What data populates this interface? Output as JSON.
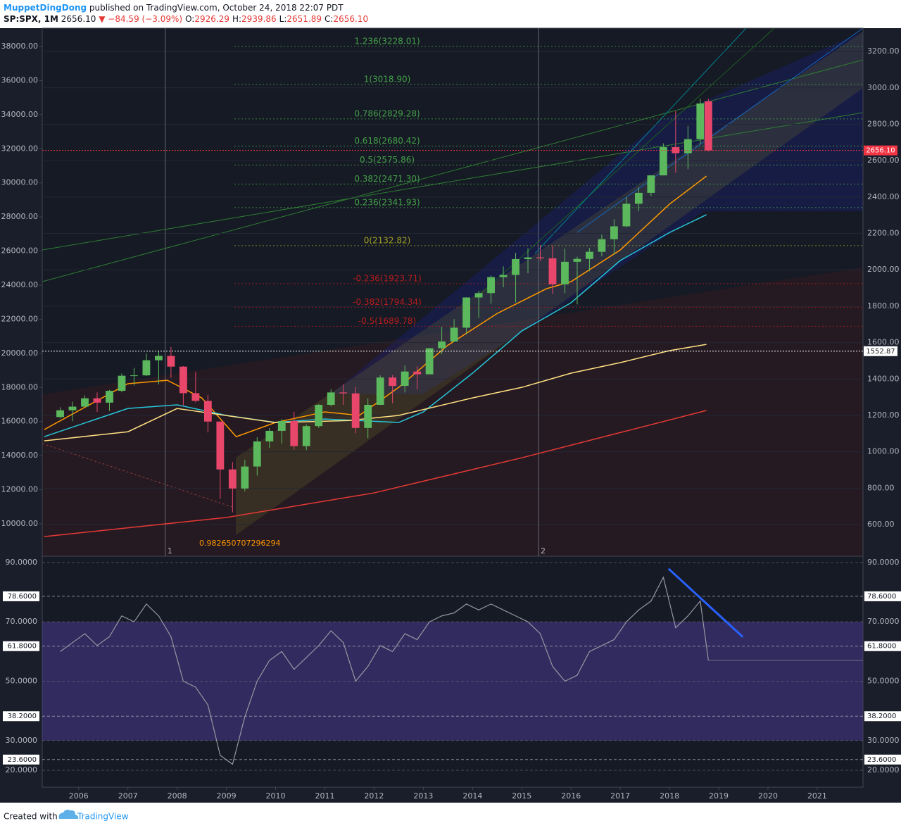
{
  "header": {
    "author": "MuppetDingDong",
    "published": "published on TradingView.com, October 24, 2018 22:07 PDT",
    "symbol": "SP:SPX, 1M",
    "last": "2656.10",
    "change": "−84.59 (−3.09%)",
    "ohlc": [
      {
        "key": "O:",
        "value": "2926.29"
      },
      {
        "key": "H:",
        "value": "2939.86"
      },
      {
        "key": "L:",
        "value": "2651.89"
      },
      {
        "key": "C:",
        "value": "2656.10"
      }
    ]
  },
  "chart_data": [
    {
      "type": "candlestick",
      "x": [
        2005.625,
        2005.875,
        2006.125,
        2006.375,
        2006.625,
        2006.875,
        2007.125,
        2007.375,
        2007.625,
        2007.875,
        2008.125,
        2008.375,
        2008.625,
        2008.875,
        2009.125,
        2009.375,
        2009.625,
        2009.875,
        2010.125,
        2010.375,
        2010.625,
        2010.875,
        2011.125,
        2011.375,
        2011.625,
        2011.875,
        2012.125,
        2012.375,
        2012.625,
        2012.875,
        2013.125,
        2013.375,
        2013.625,
        2013.875,
        2014.125,
        2014.375,
        2014.625,
        2014.875,
        2015.125,
        2015.375,
        2015.625,
        2015.875,
        2016.125,
        2016.375,
        2016.625,
        2016.875,
        2017.125,
        2017.375,
        2017.625,
        2017.875,
        2018.125,
        2018.375,
        2018.625,
        2018.79
      ],
      "open": [
        1191,
        1228,
        1248,
        1294,
        1270,
        1335,
        1418,
        1420,
        1503,
        1527,
        1468,
        1322,
        1280,
        1166,
        903,
        798,
        919,
        1057,
        1115,
        1169,
        1031,
        1141,
        1258,
        1326,
        1321,
        1131,
        1258,
        1408,
        1362,
        1441,
        1426,
        1569,
        1606,
        1682,
        1848,
        1872,
        1960,
        1972,
        2059,
        2068,
        2063,
        1920,
        2044,
        2060,
        2099,
        2168,
        2239,
        2363,
        2423,
        2519,
        2674,
        2641,
        2718,
        2926.29
      ],
      "high": [
        1245,
        1275,
        1310,
        1326,
        1340,
        1431,
        1461,
        1540,
        1556,
        1576,
        1471,
        1440,
        1313,
        1167,
        944,
        956,
        1080,
        1130,
        1180,
        1220,
        1150,
        1262,
        1344,
        1371,
        1356,
        1293,
        1420,
        1422,
        1475,
        1470,
        1570,
        1687,
        1729,
        1849,
        1884,
        1968,
        2019,
        2093,
        2119,
        2134,
        2132,
        2116,
        2072,
        2120,
        2194,
        2278,
        2401,
        2454,
        2520,
        2695,
        2873,
        2791,
        2941,
        2939.86
      ],
      "low": [
        1183,
        1168,
        1245,
        1219,
        1224,
        1327,
        1364,
        1416,
        1370,
        1406,
        1256,
        1272,
        1106,
        741,
        667,
        783,
        869,
        1020,
        1045,
        1011,
        1010,
        1131,
        1250,
        1258,
        1102,
        1075,
        1258,
        1267,
        1326,
        1343,
        1426,
        1536,
        1604,
        1646,
        1737,
        1814,
        1904,
        1820,
        1981,
        2048,
        1867,
        1872,
        1810,
        1992,
        2074,
        2084,
        2233,
        2322,
        2405,
        2519,
        2533,
        2553,
        2692,
        2651.89
      ],
      "close": [
        1228,
        1248,
        1294,
        1270,
        1335,
        1418,
        1420,
        1503,
        1527,
        1468,
        1322,
        1280,
        1166,
        903,
        798,
        919,
        1057,
        1115,
        1169,
        1031,
        1141,
        1258,
        1326,
        1321,
        1131,
        1258,
        1408,
        1362,
        1441,
        1426,
        1569,
        1606,
        1682,
        1848,
        1872,
        1960,
        1972,
        2059,
        2068,
        2063,
        1920,
        2044,
        2060,
        2099,
        2168,
        2239,
        2363,
        2423,
        2519,
        2674,
        2641,
        2718,
        2914,
        2656.1
      ],
      "up_color": "#5cb85c",
      "down_color": "#e8466a",
      "xlim": [
        2005.26,
        2021.93
      ],
      "xticks": [
        2006,
        2007,
        2008,
        2009,
        2010,
        2011,
        2012,
        2013,
        2014,
        2015,
        2016,
        2017,
        2018,
        2019,
        2020,
        2021
      ],
      "ylim": [
        426,
        3328
      ],
      "yticks": [
        {
          "value": 600,
          "label": "600.00"
        },
        {
          "value": 800,
          "label": "800.00"
        },
        {
          "value": 1000,
          "label": "1000.00"
        },
        {
          "value": 1200,
          "label": "1200.00"
        },
        {
          "value": 1400,
          "label": "1400.00"
        },
        {
          "value": 1600,
          "label": "1600.00"
        },
        {
          "value": 1800,
          "label": "1800.00"
        },
        {
          "value": 2000,
          "label": "2000.00"
        },
        {
          "value": 2200,
          "label": "2200.00"
        },
        {
          "value": 2400,
          "label": "2400.00"
        },
        {
          "value": 2600,
          "label": "2600.00"
        },
        {
          "value": 2800,
          "label": "2800.00"
        },
        {
          "value": 3000,
          "label": "3000.00"
        },
        {
          "value": 3200,
          "label": "3200.00"
        }
      ],
      "y2lim": [
        8100,
        39074
      ],
      "y2ticks": [
        {
          "value": 10000,
          "label": "10000.00"
        },
        {
          "value": 12000,
          "label": "12000.00"
        },
        {
          "value": 14000,
          "label": "14000.00"
        },
        {
          "value": 16000,
          "label": "16000.00"
        },
        {
          "value": 18000,
          "label": "18000.00"
        },
        {
          "value": 20000,
          "label": "20000.00"
        },
        {
          "value": 22000,
          "label": "22000.00"
        },
        {
          "value": 24000,
          "label": "24000.00"
        },
        {
          "value": 26000,
          "label": "26000.00"
        },
        {
          "value": 28000,
          "label": "28000.00"
        },
        {
          "value": 30000,
          "label": "30000.00"
        },
        {
          "value": 32000,
          "label": "32000.00"
        },
        {
          "value": 34000,
          "label": "34000.00"
        },
        {
          "value": 36000,
          "label": "36000.00"
        },
        {
          "value": 38000,
          "label": "38000.00"
        }
      ],
      "grid": true,
      "fib_levels": [
        {
          "value": 3228.01,
          "label": "1.236(3228.01)",
          "color": "#43a047"
        },
        {
          "value": 3018.9,
          "label": "1(3018.90)",
          "color": "#43a047"
        },
        {
          "value": 2829.28,
          "label": "0.786(2829.28)",
          "color": "#43a047"
        },
        {
          "value": 2680.42,
          "label": "0.618(2680.42)",
          "color": "#43a047"
        },
        {
          "value": 2575.86,
          "label": "0.5(2575.86)",
          "color": "#43a047"
        },
        {
          "value": 2471.3,
          "label": "0.382(2471.30)",
          "color": "#43a047"
        },
        {
          "value": 2341.93,
          "label": "0.236(2341.93)",
          "color": "#43a047"
        },
        {
          "value": 2132.82,
          "label": "0(2132.82)",
          "color": "#9e9d24"
        },
        {
          "value": 1923.71,
          "label": "-0.236(1923.71)",
          "color": "#b71c1c"
        },
        {
          "value": 1794.34,
          "label": "-0.382(1794.34)",
          "color": "#b71c1c"
        },
        {
          "value": 1689.78,
          "label": "-0.5(1689.78)",
          "color": "#b71c1c"
        }
      ],
      "lines": [
        {
          "color": "#ff9800",
          "x": [
            2005.3,
            2007,
            2007.8,
            2008.5,
            2009.2,
            2010,
            2011,
            2011.7,
            2012.5,
            2013.5,
            2014.5,
            2015.5,
            2016,
            2017,
            2018,
            2018.75
          ],
          "values": [
            1122,
            1374,
            1393,
            1296,
            1083,
            1161,
            1219,
            1200,
            1354,
            1586,
            1760,
            1896,
            1935,
            2109,
            2361,
            2515
          ]
        },
        {
          "color": "#26c6da",
          "x": [
            2005.3,
            2007,
            2008,
            2009,
            2010,
            2011,
            2012.5,
            2013,
            2014,
            2015,
            2016,
            2017,
            2018,
            2018.75
          ],
          "values": [
            1083,
            1238,
            1258,
            1200,
            1161,
            1180,
            1161,
            1219,
            1432,
            1664,
            1819,
            2051,
            2205,
            2303
          ]
        },
        {
          "color": "#ffe082",
          "x": [
            2005.3,
            2007,
            2008,
            2010,
            2011.5,
            2012.5,
            2014,
            2015,
            2016,
            2017,
            2018,
            2018.75
          ],
          "values": [
            1060,
            1110,
            1238,
            1160,
            1172,
            1200,
            1296,
            1354,
            1432,
            1490,
            1556,
            1590
          ]
        },
        {
          "color": "#e53935",
          "x": [
            2005.3,
            2009,
            2012,
            2015,
            2018.75
          ],
          "values": [
            534,
            639,
            774,
            967,
            1227
          ]
        }
      ],
      "price_lines": [
        {
          "value": 2656.1,
          "label": "2656.10",
          "color": "#f23645"
        },
        {
          "value": 1552.87,
          "label": "1552.87",
          "color": "#ffffff"
        }
      ],
      "vertical_markers": [
        {
          "x": 2007.76,
          "label": "1"
        },
        {
          "x": 2015.34,
          "label": "2"
        }
      ],
      "annotation": "0.982650707296294"
    },
    {
      "type": "line",
      "values": [
        60,
        63,
        66,
        62,
        65,
        72,
        70,
        76,
        72,
        65,
        50,
        48,
        42,
        25,
        22,
        38,
        50,
        57,
        60,
        54,
        58,
        62,
        67,
        63,
        50,
        55,
        62,
        60,
        66,
        64,
        70,
        72,
        73,
        76,
        74,
        76,
        74,
        72,
        70,
        66,
        55,
        50,
        52,
        60,
        62,
        64,
        70,
        74,
        77,
        85,
        68,
        72,
        77,
        57
      ],
      "color": "#9598a1",
      "ylim": [
        14.3,
        92.1
      ],
      "yticks": [
        {
          "value": 20,
          "label": "20.0000"
        },
        {
          "value": 30,
          "label": "30.0000"
        },
        {
          "value": 50,
          "label": "50.0000"
        },
        {
          "value": 70,
          "label": "70.0000"
        },
        {
          "value": 90,
          "label": "90.0000"
        }
      ],
      "levels": [
        {
          "value": 23.6,
          "label": "23.6000"
        },
        {
          "value": 38.2,
          "label": "38.2000"
        },
        {
          "value": 61.8,
          "label": "61.8000"
        },
        {
          "value": 78.6,
          "label": "78.6000"
        }
      ],
      "band": [
        30,
        70
      ],
      "band_color": "#4a3b8f",
      "trendline": {
        "x": [
          2017.98,
          2019.49
        ],
        "values": [
          87.9,
          64.9
        ],
        "color": "#2962ff"
      }
    }
  ],
  "footer": {
    "created": "Created with",
    "brand": "TradingView"
  }
}
